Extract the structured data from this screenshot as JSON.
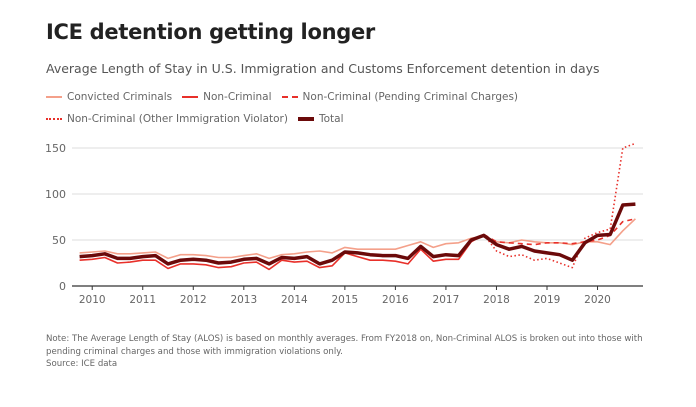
{
  "title": "ICE detention getting longer",
  "subtitle": "Average Length of Stay in U.S. Immigration and Customs Enforcement detention in days",
  "note": "Note: The Average Length of Stay (ALOS) is based on monthly averages. From FY2018 on, Non-Criminal ALOS is broken out into those with pending criminal charges and those with immigration violations only.",
  "source": "Source: ICE data",
  "chart_data": {
    "type": "line",
    "title": "ICE detention getting longer",
    "xlabel": "",
    "ylabel": "",
    "xlim": [
      2009.6,
      2020.9
    ],
    "ylim": [
      0,
      160
    ],
    "yticks": [
      0,
      50,
      100,
      150
    ],
    "xticks": [
      2010,
      2011,
      2012,
      2013,
      2014,
      2015,
      2016,
      2017,
      2018,
      2019,
      2020
    ],
    "grid": true,
    "legend": "top",
    "x": [
      2009.75,
      2010,
      2010.25,
      2010.5,
      2010.75,
      2011,
      2011.25,
      2011.5,
      2011.75,
      2012,
      2012.25,
      2012.5,
      2012.75,
      2013,
      2013.25,
      2013.5,
      2013.75,
      2014,
      2014.25,
      2014.5,
      2014.75,
      2015,
      2015.25,
      2015.5,
      2015.75,
      2016,
      2016.25,
      2016.5,
      2016.75,
      2017,
      2017.25,
      2017.5,
      2017.75,
      2018,
      2018.25,
      2018.5,
      2018.75,
      2019,
      2019.25,
      2019.5,
      2019.75,
      2020,
      2020.25,
      2020.5,
      2020.75
    ],
    "series": [
      {
        "name": "Convicted Criminals",
        "color": "#f4a08a",
        "dash": "solid",
        "values": [
          36,
          37,
          38,
          35,
          35,
          36,
          37,
          30,
          34,
          34,
          33,
          31,
          31,
          33,
          35,
          30,
          34,
          35,
          37,
          38,
          36,
          42,
          40,
          40,
          40,
          40,
          44,
          48,
          42,
          46,
          47,
          52,
          54,
          48,
          47,
          50,
          48,
          47,
          47,
          45,
          48,
          48,
          45,
          60,
          73
        ]
      },
      {
        "name": "Non-Criminal",
        "color": "#e8302a",
        "dash": "solid",
        "values": [
          28,
          29,
          31,
          25,
          26,
          28,
          28,
          19,
          24,
          24,
          23,
          20,
          21,
          25,
          26,
          18,
          28,
          26,
          27,
          20,
          22,
          36,
          32,
          28,
          28,
          27,
          24,
          40,
          27,
          29,
          29,
          48,
          56,
          null,
          null,
          null,
          null,
          null,
          null,
          null,
          null,
          null,
          null,
          null,
          null
        ]
      },
      {
        "name": "Non-Criminal (Pending Criminal Charges)",
        "color": "#e8302a",
        "dash": "dashed",
        "values": [
          null,
          null,
          null,
          null,
          null,
          null,
          null,
          null,
          null,
          null,
          null,
          null,
          null,
          null,
          null,
          null,
          null,
          null,
          null,
          null,
          null,
          null,
          null,
          null,
          null,
          null,
          null,
          null,
          null,
          null,
          null,
          null,
          56,
          48,
          47,
          46,
          45,
          47,
          47,
          46,
          48,
          50,
          55,
          70,
          73
        ]
      },
      {
        "name": "Non-Criminal (Other Immigration Violator)",
        "color": "#e8302a",
        "dash": "dotted",
        "values": [
          null,
          null,
          null,
          null,
          null,
          null,
          null,
          null,
          null,
          null,
          null,
          null,
          null,
          null,
          null,
          null,
          null,
          null,
          null,
          null,
          null,
          null,
          null,
          null,
          null,
          null,
          null,
          null,
          null,
          null,
          null,
          null,
          56,
          38,
          32,
          34,
          28,
          30,
          25,
          20,
          52,
          58,
          62,
          150,
          155
        ]
      },
      {
        "name": "Total",
        "color": "#6b0a0a",
        "dash": "solid",
        "values": [
          32,
          33,
          35,
          30,
          30,
          32,
          33,
          24,
          28,
          29,
          28,
          25,
          26,
          29,
          30,
          24,
          31,
          30,
          32,
          24,
          28,
          37,
          36,
          34,
          33,
          33,
          30,
          43,
          32,
          34,
          33,
          50,
          55,
          45,
          40,
          43,
          38,
          36,
          34,
          28,
          47,
          55,
          56,
          88,
          89
        ]
      }
    ]
  }
}
